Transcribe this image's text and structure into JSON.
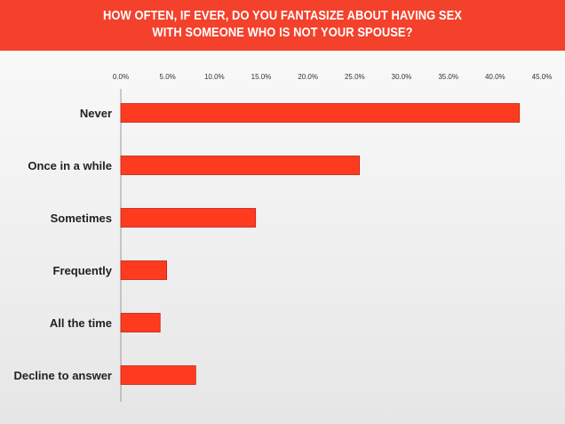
{
  "title": {
    "line1": "HOW OFTEN, IF EVER, DO YOU FANTASIZE ABOUT HAVING SEX",
    "line2": "WITH SOMEONE WHO IS NOT YOUR SPOUSE?"
  },
  "colors": {
    "banner": "#f4412b",
    "bar": "#ff3b1f",
    "bar_border": "#c02010",
    "axis": "#9a9a9a"
  },
  "chart_data": {
    "type": "bar",
    "orientation": "horizontal",
    "title": "HOW OFTEN, IF EVER, DO YOU FANTASIZE ABOUT HAVING SEX WITH SOMEONE WHO IS NOT YOUR SPOUSE?",
    "xlabel": "",
    "ylabel": "",
    "categories": [
      "Never",
      "Once in a while",
      "Sometimes",
      "Frequently",
      "All the time",
      "Decline to answer"
    ],
    "values": [
      42.6,
      25.5,
      14.4,
      4.9,
      4.2,
      8.0
    ],
    "xlim": [
      0,
      45
    ],
    "x_ticks": [
      0,
      5,
      10,
      15,
      20,
      25,
      30,
      35,
      40,
      45
    ],
    "x_tick_labels": [
      "0.0%",
      "5.0%",
      "10.0%",
      "15.0%",
      "20.0%",
      "25.0%",
      "30.0%",
      "35.0%",
      "40.0%",
      "45.0%"
    ],
    "x_axis_position": "top",
    "grid": false,
    "legend": "none"
  }
}
